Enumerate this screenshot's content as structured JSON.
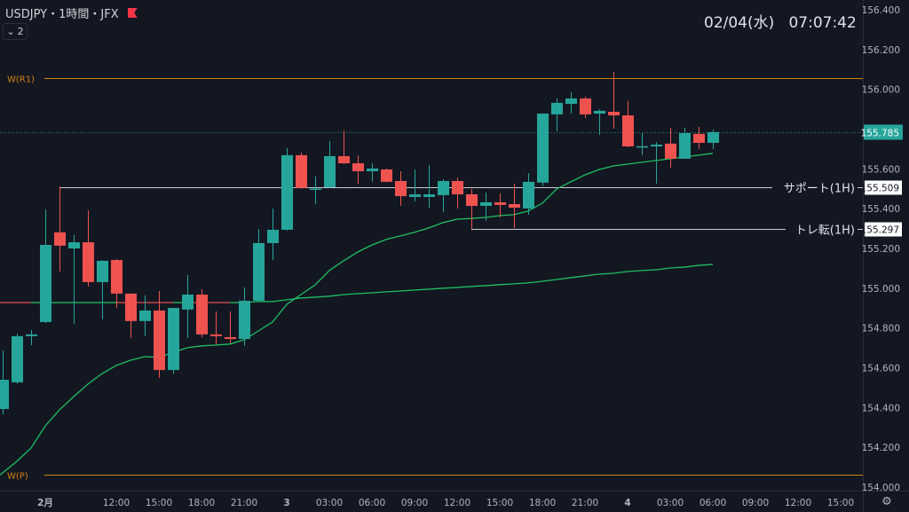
{
  "header": {
    "symbol_title": "USDJPY・1時間・JFX",
    "indicators_count": "2",
    "clock": "02/04(水)   07:07:42"
  },
  "colors": {
    "background": "#131722",
    "bull": "#26a69a",
    "bear": "#ef5350",
    "ma_fast": "#1fbf62",
    "ma_slow_up": "#1fbf62",
    "ma_slow_down": "#e0494a",
    "pivot": "#d9820b",
    "level_line": "#c8cbd2",
    "axis_text": "#b2b5be"
  },
  "chart_data": {
    "type": "candlestick",
    "title": "USDJPY・1時間・JFX",
    "ylim": [
      154.0,
      156.4
    ],
    "y_ticks": [
      "156.400",
      "156.200",
      "156.000",
      "155.600",
      "155.400",
      "155.200",
      "155.000",
      "154.800",
      "154.600",
      "154.400",
      "154.200",
      "154.000"
    ],
    "time_labels": [
      {
        "label": "2月",
        "bar": 3
      },
      {
        "label": "12:00",
        "bar": 8
      },
      {
        "label": "15:00",
        "bar": 11
      },
      {
        "label": "18:00",
        "bar": 14
      },
      {
        "label": "21:00",
        "bar": 17
      },
      {
        "label": "3",
        "bar": 20
      },
      {
        "label": "03:00",
        "bar": 23
      },
      {
        "label": "06:00",
        "bar": 26
      },
      {
        "label": "09:00",
        "bar": 29
      },
      {
        "label": "12:00",
        "bar": 32
      },
      {
        "label": "15:00",
        "bar": 35
      },
      {
        "label": "18:00",
        "bar": 38
      },
      {
        "label": "21:00",
        "bar": 41
      },
      {
        "label": "4",
        "bar": 44
      },
      {
        "label": "03:00",
        "bar": 47
      },
      {
        "label": "06:00",
        "bar": 50
      },
      {
        "label": "09:00",
        "bar": 53
      },
      {
        "label": "12:00",
        "bar": 56
      },
      {
        "label": "15:00",
        "bar": 59
      }
    ],
    "candles_ohlc": [
      [
        154.393,
        154.687,
        154.366,
        154.54
      ],
      [
        154.527,
        154.772,
        154.52,
        154.759
      ],
      [
        154.759,
        154.79,
        154.714,
        154.768
      ],
      [
        154.83,
        155.396,
        154.825,
        155.218
      ],
      [
        155.281,
        155.512,
        155.084,
        155.214
      ],
      [
        155.2,
        155.267,
        154.821,
        155.231
      ],
      [
        155.231,
        155.392,
        155.008,
        155.031
      ],
      [
        155.031,
        155.14,
        154.843,
        155.138
      ],
      [
        155.142,
        155.147,
        154.901,
        154.973
      ],
      [
        154.973,
        154.975,
        154.75,
        154.835
      ],
      [
        154.835,
        154.964,
        154.759,
        154.888
      ],
      [
        154.888,
        154.986,
        154.549,
        154.589
      ],
      [
        154.589,
        154.901,
        154.571,
        154.901
      ],
      [
        154.893,
        155.066,
        154.75,
        154.968
      ],
      [
        154.968,
        154.995,
        154.754,
        154.768
      ],
      [
        154.768,
        154.884,
        154.719,
        154.759
      ],
      [
        154.754,
        154.884,
        154.723,
        154.745
      ],
      [
        154.745,
        155.004,
        154.71,
        154.937
      ],
      [
        154.937,
        155.298,
        154.935,
        155.227
      ],
      [
        155.227,
        155.401,
        155.142,
        155.294
      ],
      [
        155.294,
        155.704,
        155.29,
        155.669
      ],
      [
        155.669,
        155.682,
        155.5,
        155.504
      ],
      [
        155.5,
        155.562,
        155.423,
        155.501
      ],
      [
        155.508,
        155.74,
        155.505,
        155.664
      ],
      [
        155.664,
        155.793,
        155.625,
        155.628
      ],
      [
        155.628,
        155.668,
        155.526,
        155.588
      ],
      [
        155.588,
        155.628,
        155.535,
        155.602
      ],
      [
        155.597,
        155.603,
        155.533,
        155.535
      ],
      [
        155.539,
        155.588,
        155.414,
        155.463
      ],
      [
        155.459,
        155.597,
        155.437,
        155.472
      ],
      [
        155.459,
        155.619,
        155.405,
        155.472
      ],
      [
        155.468,
        155.548,
        155.383,
        155.539
      ],
      [
        155.539,
        155.557,
        155.401,
        155.472
      ],
      [
        155.472,
        155.499,
        155.298,
        155.414
      ],
      [
        155.414,
        155.481,
        155.339,
        155.432
      ],
      [
        155.432,
        155.477,
        155.356,
        155.419
      ],
      [
        155.423,
        155.526,
        155.303,
        155.405
      ],
      [
        155.401,
        155.579,
        155.37,
        155.535
      ],
      [
        155.531,
        155.878,
        155.513,
        155.878
      ],
      [
        155.874,
        155.954,
        155.789,
        155.932
      ],
      [
        155.927,
        155.985,
        155.878,
        155.954
      ],
      [
        155.954,
        155.963,
        155.856,
        155.874
      ],
      [
        155.878,
        155.9,
        155.771,
        155.892
      ],
      [
        155.887,
        156.088,
        155.802,
        155.869
      ],
      [
        155.869,
        155.941,
        155.709,
        155.713
      ],
      [
        155.713,
        155.78,
        155.669,
        155.714
      ],
      [
        155.713,
        155.735,
        155.526,
        155.722
      ],
      [
        155.727,
        155.807,
        155.606,
        155.651
      ],
      [
        155.651,
        155.807,
        155.65,
        155.78
      ],
      [
        155.776,
        155.811,
        155.7,
        155.731
      ],
      [
        155.731,
        155.798,
        155.7,
        155.785
      ]
    ],
    "ma_fast": [
      154.072,
      154.13,
      154.197,
      154.308,
      154.389,
      154.455,
      154.518,
      154.571,
      154.612,
      154.638,
      154.656,
      154.652,
      154.678,
      154.701,
      154.71,
      154.714,
      154.719,
      154.741,
      154.785,
      154.83,
      154.919,
      154.968,
      155.017,
      155.089,
      155.138,
      155.182,
      155.218,
      155.245,
      155.263,
      155.281,
      155.303,
      155.33,
      155.347,
      155.351,
      155.356,
      155.365,
      155.37,
      155.388,
      155.428,
      155.499,
      155.535,
      155.57,
      155.597,
      155.615,
      155.624,
      155.633,
      155.642,
      155.651,
      155.66,
      155.669,
      155.678
    ],
    "ma_slow": [
      154.928,
      154.928,
      154.928,
      154.928,
      154.928,
      154.928,
      154.928,
      154.928,
      154.928,
      154.928,
      154.928,
      154.928,
      154.928,
      154.928,
      154.928,
      154.928,
      154.928,
      154.928,
      154.933,
      154.933,
      154.942,
      154.951,
      154.955,
      154.96,
      154.968,
      154.973,
      154.977,
      154.982,
      154.986,
      154.991,
      154.995,
      155.0,
      155.004,
      155.009,
      155.013,
      155.018,
      155.022,
      155.027,
      155.035,
      155.044,
      155.053,
      155.062,
      155.071,
      155.075,
      155.084,
      155.089,
      155.093,
      155.102,
      155.106,
      155.115,
      155.12
    ],
    "pivot_lines": [
      {
        "label": "W(R1)",
        "value": 156.057
      },
      {
        "label": "W(P)",
        "value": 154.063
      }
    ],
    "level_lines": [
      {
        "label": "サポート(1H)",
        "value": 155.509,
        "value_label": "155.509",
        "start_bar": 4
      },
      {
        "label": "トレ転(1H)",
        "value": 155.297,
        "value_label": "155.297",
        "start_bar": 33
      }
    ],
    "last_price": 155.785,
    "last_price_label": "155.785"
  },
  "footer": {
    "settings_icon": "gear-icon"
  }
}
